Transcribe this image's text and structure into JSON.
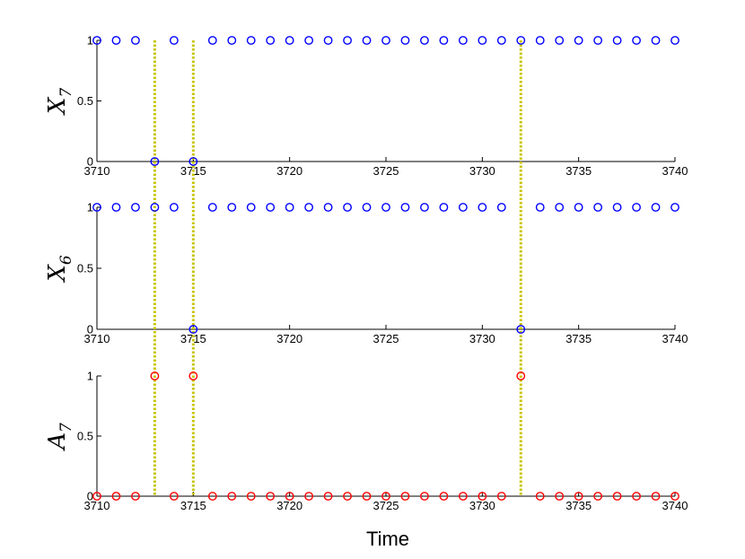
{
  "chart_data": {
    "type": "scatter",
    "xlabel": "Time",
    "grid": false,
    "xlim": [
      3710,
      3740
    ],
    "xticks": [
      "3710",
      "3715",
      "3720",
      "3725",
      "3730",
      "3735",
      "3740"
    ],
    "yticks": [
      "0",
      "0.5",
      "1"
    ],
    "event_lines": [
      3713,
      3715,
      3732
    ],
    "event_line_color": "#c8c400",
    "panels": [
      {
        "ylabel": "X",
        "ylabel_sub": "7",
        "ylim": [
          0,
          1
        ],
        "marker_color": "#0000ff",
        "x": [
          3710,
          3711,
          3712,
          3713,
          3714,
          3715,
          3716,
          3717,
          3718,
          3719,
          3720,
          3721,
          3722,
          3723,
          3724,
          3725,
          3726,
          3727,
          3728,
          3729,
          3730,
          3731,
          3732,
          3733,
          3734,
          3735,
          3736,
          3737,
          3738,
          3739,
          3740
        ],
        "y": [
          1,
          1,
          1,
          0,
          1,
          0,
          1,
          1,
          1,
          1,
          1,
          1,
          1,
          1,
          1,
          1,
          1,
          1,
          1,
          1,
          1,
          1,
          1,
          1,
          1,
          1,
          1,
          1,
          1,
          1,
          1
        ]
      },
      {
        "ylabel": "X",
        "ylabel_sub": "6",
        "ylim": [
          0,
          1
        ],
        "marker_color": "#0000ff",
        "x": [
          3710,
          3711,
          3712,
          3713,
          3714,
          3715,
          3716,
          3717,
          3718,
          3719,
          3720,
          3721,
          3722,
          3723,
          3724,
          3725,
          3726,
          3727,
          3728,
          3729,
          3730,
          3731,
          3732,
          3733,
          3734,
          3735,
          3736,
          3737,
          3738,
          3739,
          3740
        ],
        "y": [
          1,
          1,
          1,
          1,
          1,
          0,
          1,
          1,
          1,
          1,
          1,
          1,
          1,
          1,
          1,
          1,
          1,
          1,
          1,
          1,
          1,
          1,
          0,
          1,
          1,
          1,
          1,
          1,
          1,
          1,
          1
        ]
      },
      {
        "ylabel": "A",
        "ylabel_sub": "7",
        "ylim": [
          0,
          1
        ],
        "marker_color": "#ff0000",
        "x": [
          3710,
          3711,
          3712,
          3713,
          3714,
          3715,
          3716,
          3717,
          3718,
          3719,
          3720,
          3721,
          3722,
          3723,
          3724,
          3725,
          3726,
          3727,
          3728,
          3729,
          3730,
          3731,
          3732,
          3733,
          3734,
          3735,
          3736,
          3737,
          3738,
          3739,
          3740
        ],
        "y": [
          0,
          0,
          0,
          1,
          0,
          1,
          0,
          0,
          0,
          0,
          0,
          0,
          0,
          0,
          0,
          0,
          0,
          0,
          0,
          0,
          0,
          0,
          1,
          0,
          0,
          0,
          0,
          0,
          0,
          0,
          0
        ]
      }
    ]
  }
}
